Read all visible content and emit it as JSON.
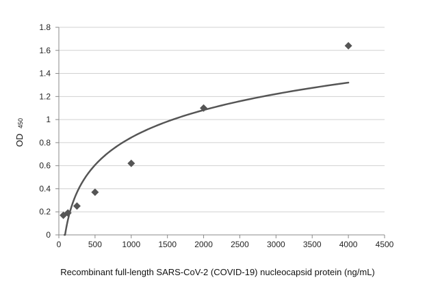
{
  "chart_data": {
    "type": "scatter",
    "xlabel": "Recombinant  full-length SARS-CoV-2 (COVID-19) nucleocapsid protein  (ng/mL)",
    "ylabel_main": "OD",
    "ylabel_sub": "450",
    "xlim": [
      0,
      4500
    ],
    "ylim": [
      0,
      1.8
    ],
    "x_ticks": [
      0,
      500,
      1000,
      1500,
      2000,
      2500,
      3000,
      3500,
      4000,
      4500
    ],
    "y_ticks": [
      0,
      0.2,
      0.4,
      0.6,
      0.8,
      1,
      1.2,
      1.4,
      1.6,
      1.8
    ],
    "grid": "horizontal",
    "points": [
      {
        "x": 62.5,
        "y": 0.17
      },
      {
        "x": 125,
        "y": 0.19
      },
      {
        "x": 250,
        "y": 0.25
      },
      {
        "x": 500,
        "y": 0.37
      },
      {
        "x": 1000,
        "y": 0.62
      },
      {
        "x": 2000,
        "y": 1.1
      },
      {
        "x": 4000,
        "y": 1.64
      }
    ],
    "fit": {
      "type": "logarithmic",
      "a": 0.3437,
      "b": -1.5301,
      "x_start": 78,
      "x_end": 4000
    },
    "colors": {
      "marker": "#555555",
      "fit_line": "#555555",
      "grid": "#d0d0d0",
      "axis": "#888888"
    }
  }
}
